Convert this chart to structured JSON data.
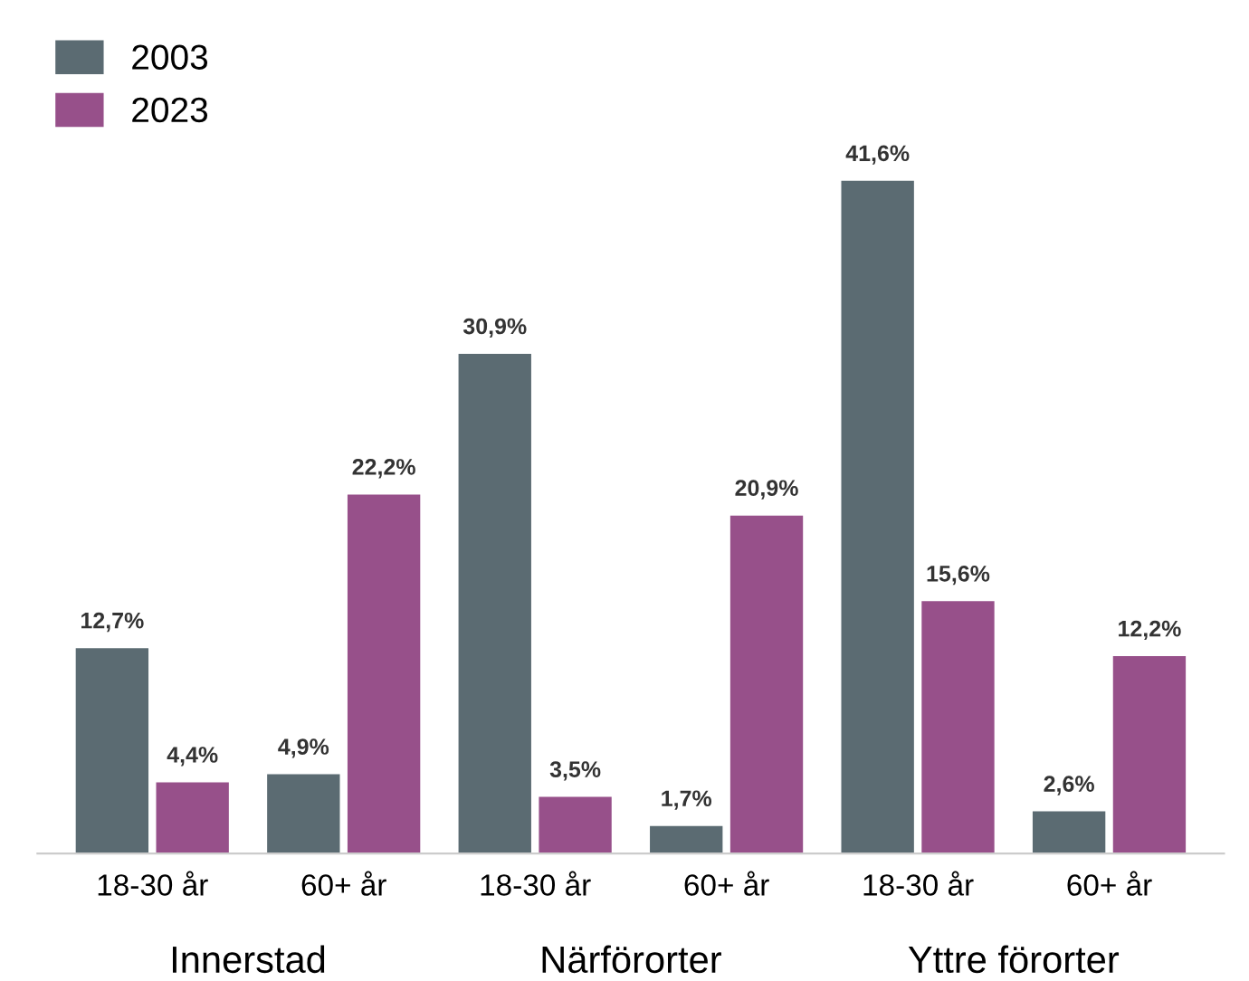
{
  "chart_data": {
    "type": "bar",
    "categories": [
      "18-30 år",
      "60+ år",
      "18-30 år",
      "60+ år",
      "18-30 år",
      "60+ år"
    ],
    "series": [
      {
        "name": "2003",
        "color": "#5b6b72",
        "values": [
          12.7,
          4.9,
          30.9,
          1.7,
          41.6,
          2.6
        ],
        "value_labels": [
          "12,7%",
          "4,9%",
          "30,9%",
          "1,7%",
          "41,6%",
          "2,6%"
        ]
      },
      {
        "name": "2023",
        "color": "#97508a",
        "values": [
          4.4,
          22.2,
          3.5,
          20.9,
          15.6,
          12.2
        ],
        "value_labels": [
          "4,4%",
          "22,2%",
          "3,5%",
          "20,9%",
          "15,6%",
          "12,2%"
        ]
      }
    ],
    "annotations": [
      "Innerstad",
      "Närförorter",
      "Yttre förorter"
    ],
    "legend": "top left",
    "grid": false
  }
}
